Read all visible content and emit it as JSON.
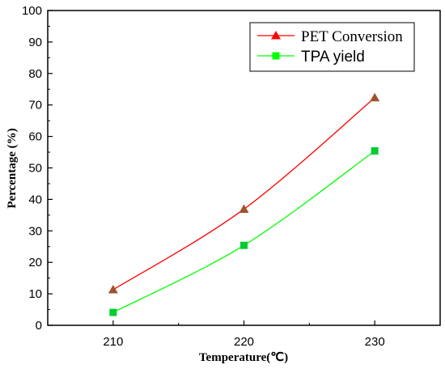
{
  "chart_data": {
    "type": "line",
    "title": "",
    "xlabel": "Temperature(℃)",
    "ylabel": "Percentage (%)",
    "x": [
      210,
      220,
      230
    ],
    "xlim": [
      205,
      235
    ],
    "x_ticks": [
      210,
      220,
      230
    ],
    "ylim": [
      0,
      100
    ],
    "y_ticks": [
      0,
      10,
      20,
      30,
      40,
      50,
      60,
      70,
      80,
      90,
      100
    ],
    "grid": false,
    "legend_position": "top-right",
    "series": [
      {
        "name": "PET Conversion",
        "values": [
          11.3,
          36.9,
          72.3
        ],
        "color": "#ff0000",
        "marker_color": "#a0522d",
        "marker": "triangle"
      },
      {
        "name": "TPA yield",
        "values": [
          4.1,
          25.4,
          55.4
        ],
        "color": "#00ff00",
        "marker_color": "#00cc33",
        "marker": "square"
      }
    ]
  }
}
